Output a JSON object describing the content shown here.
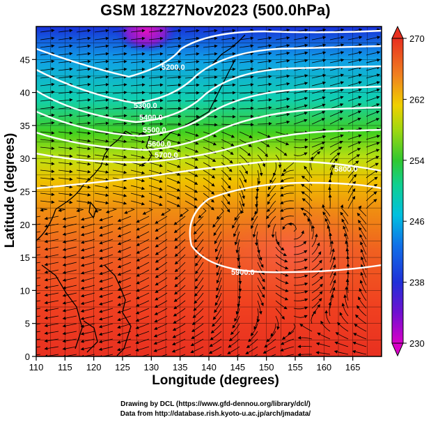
{
  "title": "GSM 18Z27Nov2023 (500.0hPa)",
  "map": {
    "x_axis": {
      "label": "Longitude (degrees)",
      "range": [
        110,
        170
      ],
      "ticks": [
        "110",
        "115",
        "120",
        "125",
        "130",
        "135",
        "140",
        "145",
        "150",
        "155",
        "160",
        "165"
      ]
    },
    "y_axis": {
      "label": "Latitude  (degrees)",
      "range": [
        0,
        50
      ],
      "ticks": [
        "0",
        "5",
        "10",
        "15",
        "20",
        "25",
        "30",
        "35",
        "40",
        "45"
      ]
    },
    "grid": true,
    "fill_variable_colorbar": {
      "ticks": [
        "230",
        "238",
        "246",
        "254",
        "262",
        "270"
      ],
      "range": [
        230,
        270
      ],
      "colors": [
        "#d000c8",
        "#2030d8",
        "#00c0e0",
        "#30c830",
        "#f0d000",
        "#f08020",
        "#e83020"
      ]
    },
    "contours": [
      {
        "label": "5200.0",
        "color": "#ffffff"
      },
      {
        "label": "5300.0",
        "color": "#ffffff"
      },
      {
        "label": "5400.0",
        "color": "#ffffff"
      },
      {
        "label": "5500.0",
        "color": "#ffffff"
      },
      {
        "label": "5600.0",
        "color": "#ffffff"
      },
      {
        "label": "5700.0",
        "color": "#ffffff"
      },
      {
        "label": "5800.0",
        "color": "#ffffff"
      },
      {
        "label": "5900.0",
        "color": "#ffffff"
      }
    ]
  },
  "footer": {
    "line1": "Drawing by DCL (https://www.gfd-dennou.org/library/dcl/)",
    "line2": "Data from http://database.rish.kyoto-u.ac.jp/arch/jmadata/"
  }
}
